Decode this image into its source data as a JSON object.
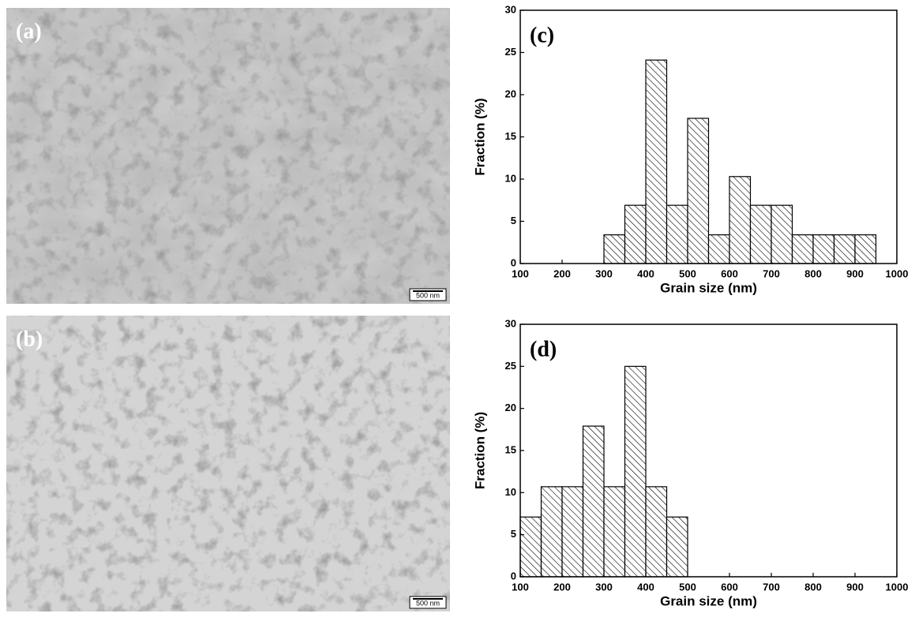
{
  "images": [
    {
      "label": "(a)",
      "scale_bar": "500 nm"
    },
    {
      "label": "(b)",
      "scale_bar": "500 nm"
    }
  ],
  "chart_data": [
    {
      "type": "histogram",
      "annotation": "(c)",
      "xlabel": "Grain size (nm)",
      "ylabel": "Fraction (%)",
      "bins": [
        300,
        350,
        400,
        450,
        500,
        550,
        600,
        650,
        700,
        750,
        800,
        850,
        900,
        950
      ],
      "values": [
        3.4,
        6.9,
        24.1,
        6.9,
        17.2,
        3.4,
        10.3,
        6.9,
        6.9,
        3.4,
        3.4,
        3.4,
        3.4
      ],
      "color": "#000000",
      "xlim": [
        100,
        1000
      ],
      "xticks": [
        100,
        200,
        300,
        400,
        500,
        600,
        700,
        800,
        900,
        1000
      ],
      "ylim": [
        0,
        30
      ],
      "yticks": [
        0,
        5,
        10,
        15,
        20,
        25,
        30
      ]
    },
    {
      "type": "histogram",
      "annotation": "(d)",
      "xlabel": "Grain size (nm)",
      "ylabel": "Fraction (%)",
      "bins": [
        100,
        150,
        200,
        250,
        300,
        350,
        400,
        450,
        500
      ],
      "values": [
        7.1,
        10.7,
        10.7,
        17.9,
        10.7,
        25.0,
        10.7,
        7.1
      ],
      "color": "#000000",
      "xlim": [
        100,
        1000
      ],
      "xticks": [
        100,
        200,
        300,
        400,
        500,
        600,
        700,
        800,
        900,
        1000
      ],
      "ylim": [
        0,
        30
      ],
      "yticks": [
        0,
        5,
        10,
        15,
        20,
        25,
        30
      ]
    }
  ]
}
